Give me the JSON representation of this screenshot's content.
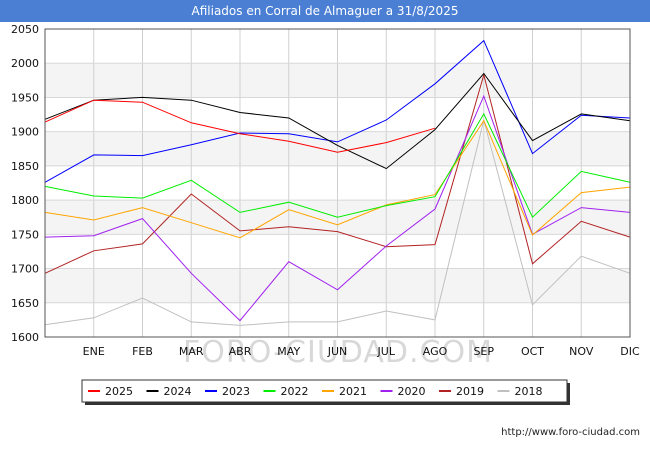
{
  "header": {
    "title": "Afiliados en Corral de Almaguer a 31/8/2025"
  },
  "watermark": "FORO-CIUDAD.COM",
  "source_url": "http://www.foro-ciudad.com",
  "chart_data": {
    "type": "line",
    "title": "Afiliados en Corral de Almaguer a 31/8/2025",
    "categories": [
      "",
      "ENE",
      "FEB",
      "MAR",
      "ABR",
      "MAY",
      "JUN",
      "JUL",
      "AGO",
      "SEP",
      "OCT",
      "NOV",
      "DIC"
    ],
    "ylim": [
      1600,
      2050
    ],
    "yticks": [
      1600,
      1650,
      1700,
      1750,
      1800,
      1850,
      1900,
      1950,
      2000,
      2050
    ],
    "grid": true,
    "legend_position": "bottom",
    "series": [
      {
        "name": "2025",
        "color": "#ff0000",
        "values": [
          1914,
          1946,
          1943,
          1913,
          1897,
          1886,
          1870,
          1884,
          1905,
          null,
          null,
          null,
          null
        ]
      },
      {
        "name": "2024",
        "color": "#000000",
        "values": [
          1918,
          1946,
          1950,
          1946,
          1928,
          1920,
          1880,
          1846,
          1903,
          1985,
          1887,
          1926,
          1916
        ]
      },
      {
        "name": "2023",
        "color": "#0000ff",
        "values": [
          1826,
          1866,
          1865,
          1881,
          1898,
          1897,
          1885,
          1917,
          1970,
          2033,
          1868,
          1924,
          1920
        ]
      },
      {
        "name": "2022",
        "color": "#00ee00",
        "values": [
          1820,
          1806,
          1803,
          1829,
          1782,
          1797,
          1775,
          1792,
          1805,
          1926,
          1775,
          1842,
          1826
        ]
      },
      {
        "name": "2021",
        "color": "#ffa500",
        "values": [
          1782,
          1771,
          1789,
          1767,
          1745,
          1786,
          1764,
          1793,
          1808,
          1916,
          1749,
          1811,
          1819
        ]
      },
      {
        "name": "2020",
        "color": "#a020f0",
        "values": [
          1746,
          1748,
          1773,
          1693,
          1624,
          1710,
          1669,
          1733,
          1787,
          1952,
          1750,
          1789,
          1782
        ]
      },
      {
        "name": "2019",
        "color": "#b22222",
        "values": [
          1693,
          1726,
          1736,
          1809,
          1755,
          1761,
          1754,
          1732,
          1735,
          1983,
          1707,
          1769,
          1746
        ]
      },
      {
        "name": "2018",
        "color": "#c0c0c0",
        "values": [
          1618,
          1628,
          1657,
          1622,
          1617,
          1622,
          1622,
          1638,
          1625,
          1917,
          1647,
          1718,
          1693
        ]
      }
    ]
  }
}
